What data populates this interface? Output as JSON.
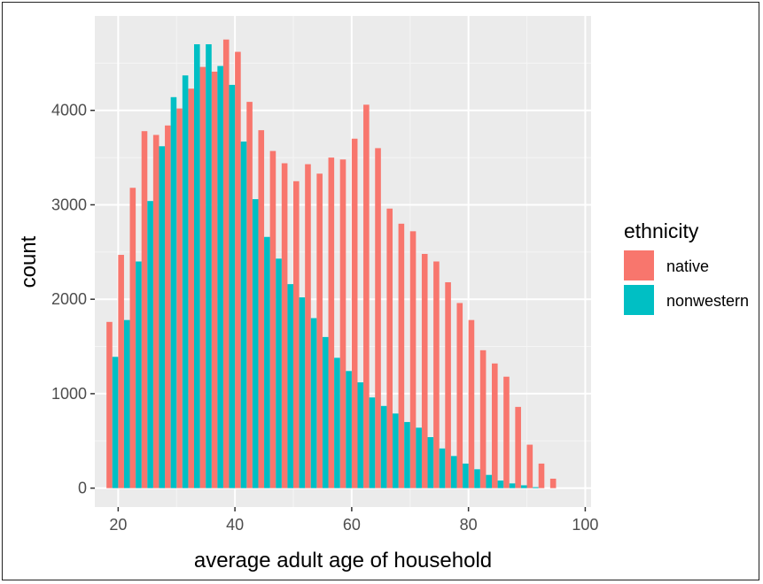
{
  "chart_data": {
    "type": "bar",
    "xlabel": "average adult age of household",
    "ylabel": "count",
    "xlim": [
      16,
      101
    ],
    "ylim": [
      -200,
      5000
    ],
    "x_ticks": [
      20,
      40,
      60,
      80,
      100
    ],
    "y_ticks": [
      0,
      1000,
      2000,
      3000,
      4000
    ],
    "grid": true,
    "legend": {
      "title": "ethnicity",
      "position": "right"
    },
    "bin_width": 2,
    "x": [
      19,
      21,
      23,
      25,
      27,
      29,
      31,
      33,
      35,
      37,
      39,
      41,
      43,
      45,
      47,
      49,
      51,
      53,
      55,
      57,
      59,
      61,
      63,
      65,
      67,
      69,
      71,
      73,
      75,
      77,
      79,
      81,
      83,
      85,
      87,
      89,
      91,
      93,
      95
    ],
    "series": [
      {
        "name": "native",
        "color": "#F8766D",
        "values": [
          1760,
          2470,
          3180,
          3780,
          3740,
          3840,
          4020,
          4230,
          4460,
          4410,
          4750,
          4620,
          4090,
          3790,
          3570,
          3440,
          3250,
          3430,
          3330,
          3500,
          3480,
          3700,
          4060,
          3600,
          2960,
          2800,
          2720,
          2480,
          2400,
          2180,
          1960,
          1780,
          1460,
          1320,
          1180,
          860,
          460,
          260,
          100
        ]
      },
      {
        "name": "nonwestern",
        "color": "#00BFC4",
        "values": [
          1390,
          1780,
          2400,
          3040,
          3620,
          4140,
          4370,
          4700,
          4700,
          4470,
          4270,
          3670,
          3060,
          2660,
          2430,
          2160,
          2020,
          1800,
          1600,
          1380,
          1240,
          1120,
          960,
          870,
          790,
          700,
          640,
          540,
          420,
          340,
          260,
          200,
          140,
          80,
          50,
          30,
          10,
          0,
          0
        ]
      }
    ]
  }
}
